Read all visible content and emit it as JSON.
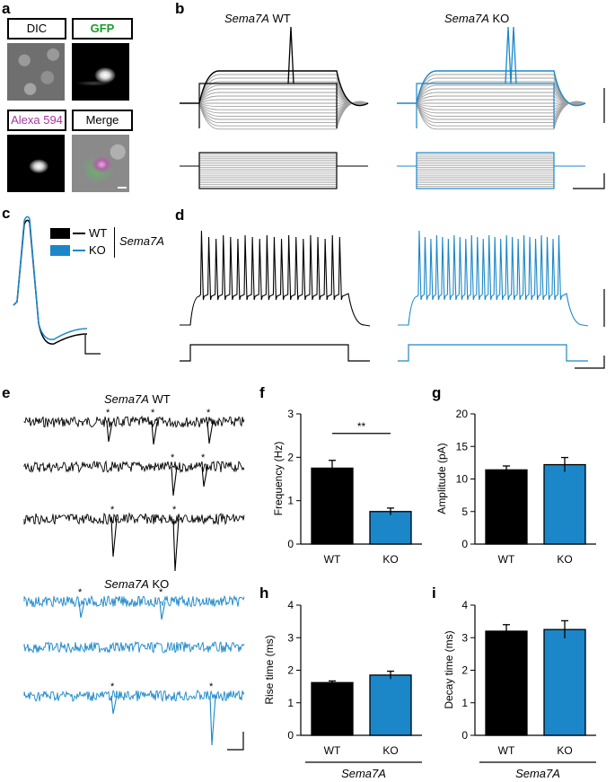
{
  "panel_labels": {
    "a": "a",
    "b": "b",
    "c": "c",
    "d": "d",
    "e": "e",
    "f": "f",
    "g": "g",
    "h": "h",
    "i": "i"
  },
  "panel_a": {
    "dic": "DIC",
    "gfp": "GFP",
    "alexa": "Alexa 594",
    "merge": "Merge",
    "colors": {
      "gfp": "#1a9c2b",
      "alexa": "#a5379b"
    }
  },
  "gene": "Sema7A",
  "panel_b": {
    "wt": "WT",
    "ko": "KO"
  },
  "panel_c": {
    "legend": [
      {
        "label": "WT",
        "color": "#000000"
      },
      {
        "label": "KO",
        "color": "#1b87c9"
      }
    ]
  },
  "panel_e": {
    "star": "*",
    "wt_title_suffix": "WT",
    "ko_title_suffix": "KO"
  },
  "colors": {
    "wt": "#000000",
    "ko": "#1b87c9",
    "trace_grey": "#a0a0a0"
  },
  "chart_data": [
    {
      "panel": "f",
      "type": "bar",
      "categories": [
        "WT",
        "KO"
      ],
      "values": [
        1.75,
        0.75
      ],
      "errors": [
        0.18,
        0.08
      ],
      "ylabel": "Frequency (Hz)",
      "ylim": [
        0,
        3
      ],
      "yticks": [
        0,
        1,
        2,
        3
      ],
      "significance": "**"
    },
    {
      "panel": "g",
      "type": "bar",
      "categories": [
        "WT",
        "KO"
      ],
      "values": [
        11.4,
        12.2
      ],
      "errors": [
        0.6,
        1.1
      ],
      "ylabel": "Amplitude (pA)",
      "ylim": [
        0,
        20
      ],
      "yticks": [
        0,
        5,
        10,
        15,
        20
      ]
    },
    {
      "panel": "h",
      "type": "bar",
      "categories": [
        "WT",
        "KO"
      ],
      "values": [
        1.62,
        1.85
      ],
      "errors": [
        0.05,
        0.12
      ],
      "ylabel": "Rise time (ms)",
      "ylim": [
        0,
        4
      ],
      "yticks": [
        0,
        1,
        2,
        3,
        4
      ],
      "group_label": "Sema7A"
    },
    {
      "panel": "i",
      "type": "bar",
      "categories": [
        "WT",
        "KO"
      ],
      "values": [
        3.2,
        3.25
      ],
      "errors": [
        0.2,
        0.27
      ],
      "ylabel": "Decay time (ms)",
      "ylim": [
        0,
        4
      ],
      "yticks": [
        0,
        1,
        2,
        3,
        4
      ],
      "group_label": "Sema7A"
    }
  ]
}
